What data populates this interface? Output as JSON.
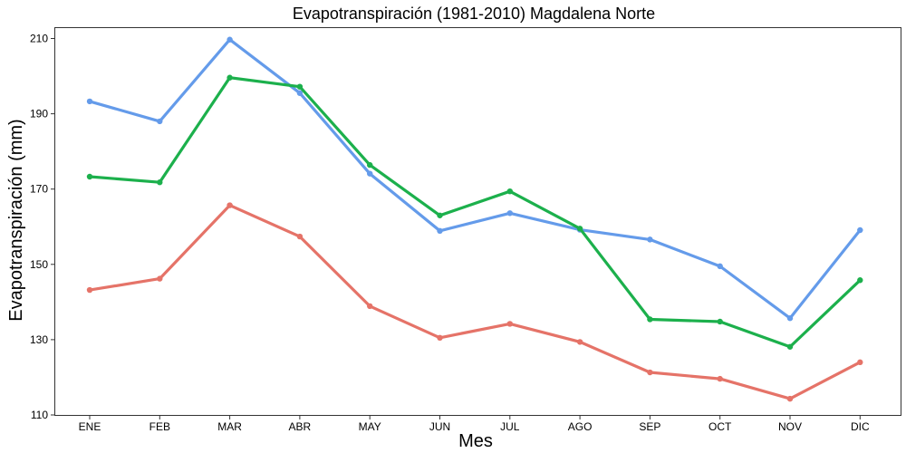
{
  "chart_data": {
    "type": "line",
    "title": "Evapotranspiración (1981-2010)  Magdalena Norte",
    "xlabel": "Mes",
    "ylabel": "Evapotranspiración (mm)",
    "categories": [
      "ENE",
      "FEB",
      "MAR",
      "ABR",
      "MAY",
      "JUN",
      "JUL",
      "AGO",
      "SEP",
      "OCT",
      "NOV",
      "DIC"
    ],
    "ylim": [
      110,
      213
    ],
    "yticks": [
      110,
      130,
      150,
      170,
      190,
      210
    ],
    "grid": false,
    "legend": "none",
    "series": [
      {
        "color": "#e57368",
        "values": [
          143.2,
          146.2,
          165.7,
          157.4,
          138.9,
          130.5,
          134.2,
          129.4,
          121.3,
          119.6,
          114.3,
          124.0
        ]
      },
      {
        "color": "#649bea",
        "values": [
          193.3,
          188.0,
          209.7,
          195.5,
          174.1,
          158.9,
          163.6,
          159.2,
          156.6,
          149.5,
          135.7,
          159.1
        ]
      },
      {
        "color": "#1cb04c",
        "values": [
          173.3,
          171.8,
          199.6,
          197.2,
          176.4,
          163.0,
          169.4,
          159.5,
          135.4,
          134.8,
          128.1,
          145.8
        ]
      }
    ]
  }
}
